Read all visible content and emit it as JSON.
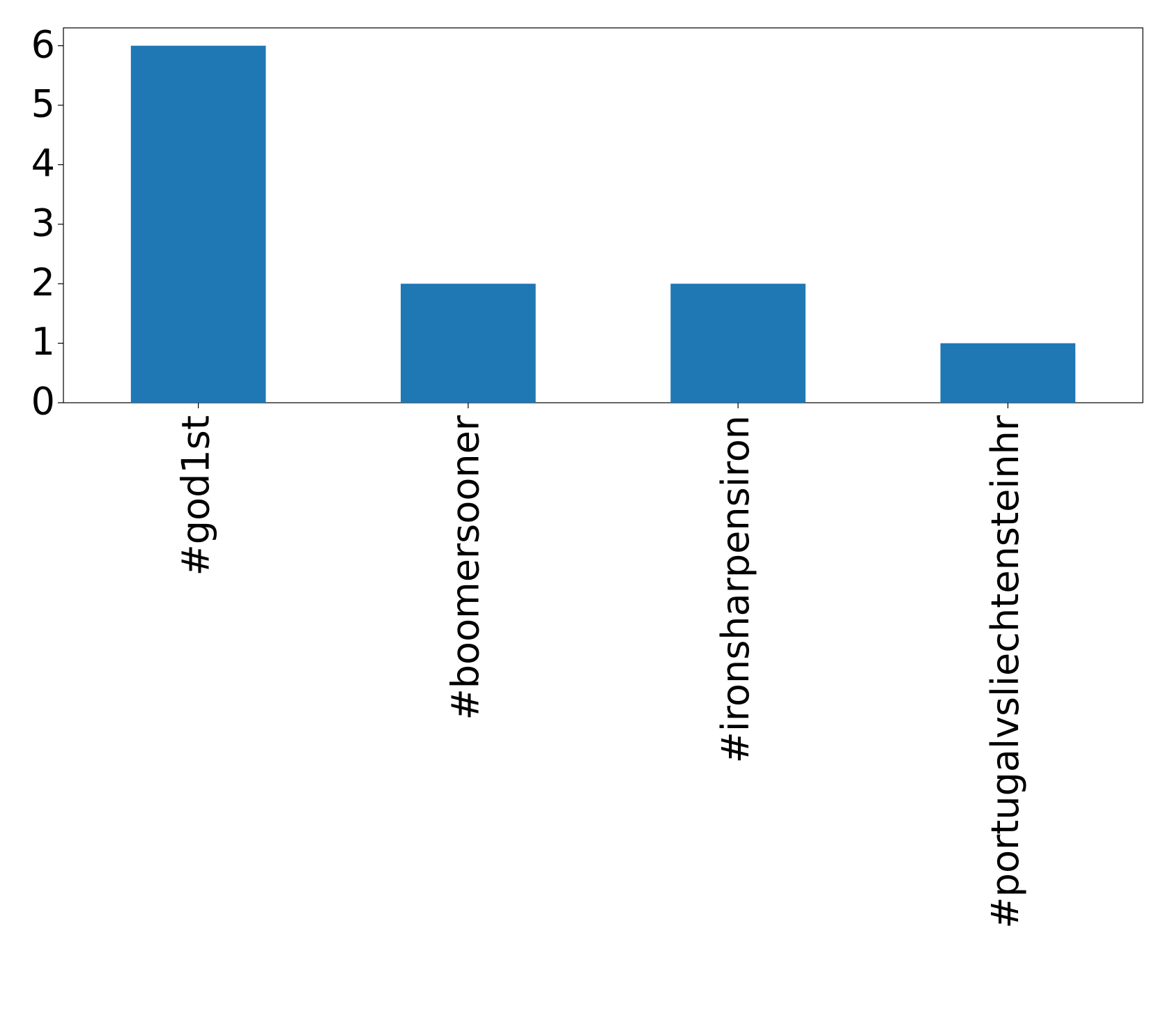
{
  "chart_data": {
    "type": "bar",
    "categories": [
      "#god1st",
      "#boomersooner",
      "#ironsharpensiron",
      "#portugalvsliechtensteinhr"
    ],
    "values": [
      6,
      2,
      2,
      1
    ],
    "color": "#1f77b4",
    "ylim": [
      0,
      6.3
    ],
    "yticks": [
      0,
      1,
      2,
      3,
      4,
      5,
      6
    ],
    "grid": false
  }
}
